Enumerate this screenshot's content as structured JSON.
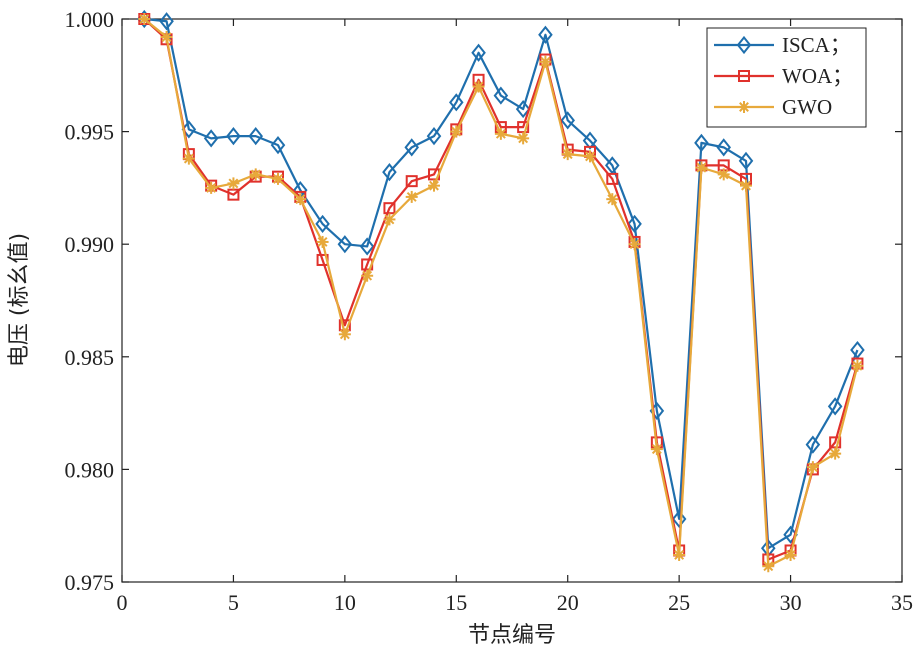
{
  "chart_data": {
    "type": "line",
    "xlabel": "节点编号",
    "ylabel": "电压 (标幺值)",
    "xlim": [
      0,
      35
    ],
    "ylim": [
      0.975,
      1.0
    ],
    "x_ticks": [
      0,
      5,
      10,
      15,
      20,
      25,
      30,
      35
    ],
    "y_ticks": [
      0.975,
      0.98,
      0.985,
      0.99,
      0.995,
      1.0
    ],
    "x_tick_labels": [
      "0",
      "5",
      "10",
      "15",
      "20",
      "25",
      "30",
      "35"
    ],
    "y_tick_labels": [
      "0.975",
      "0.980",
      "0.985",
      "0.990",
      "0.995",
      "1.000"
    ],
    "grid": false,
    "legend_position": "top-right",
    "x": [
      1,
      2,
      3,
      4,
      5,
      6,
      7,
      8,
      9,
      10,
      11,
      12,
      13,
      14,
      15,
      16,
      17,
      18,
      19,
      20,
      21,
      22,
      23,
      24,
      25,
      26,
      27,
      28,
      29,
      30,
      31,
      32,
      33
    ],
    "series": [
      {
        "name": "ISCA；",
        "color": "#1f6fad",
        "marker": "diamond",
        "values": [
          1.0,
          0.9999,
          0.9951,
          0.9947,
          0.9948,
          0.9948,
          0.9944,
          0.9924,
          0.9909,
          0.99,
          0.9899,
          0.9932,
          0.9943,
          0.9948,
          0.9963,
          0.9985,
          0.9966,
          0.996,
          0.9993,
          0.9955,
          0.9946,
          0.9935,
          0.9909,
          0.9826,
          0.9778,
          0.9945,
          0.9943,
          0.9937,
          0.9765,
          0.9771,
          0.9811,
          0.9828,
          0.9853
        ]
      },
      {
        "name": "WOA；",
        "color": "#e0312c",
        "marker": "square",
        "values": [
          1.0,
          0.9991,
          0.994,
          0.9926,
          0.9922,
          0.993,
          0.993,
          0.9921,
          0.9893,
          0.9864,
          0.9891,
          0.9916,
          0.9928,
          0.9931,
          0.9951,
          0.9973,
          0.9952,
          0.9952,
          0.9982,
          0.9942,
          0.9941,
          0.9929,
          0.9901,
          0.9812,
          0.9764,
          0.9935,
          0.9935,
          0.9929,
          0.976,
          0.9764,
          0.98,
          0.9812,
          0.9847
        ]
      },
      {
        "name": "GWO",
        "color": "#e7a93b",
        "marker": "star",
        "values": [
          1.0,
          0.9992,
          0.9938,
          0.9925,
          0.9927,
          0.9931,
          0.9929,
          0.992,
          0.9901,
          0.986,
          0.9886,
          0.9911,
          0.9921,
          0.9926,
          0.995,
          0.997,
          0.9949,
          0.9947,
          0.9981,
          0.994,
          0.9939,
          0.992,
          0.99,
          0.9809,
          0.9762,
          0.9934,
          0.9931,
          0.9926,
          0.9757,
          0.9762,
          0.9801,
          0.9807,
          0.9846
        ]
      }
    ]
  }
}
